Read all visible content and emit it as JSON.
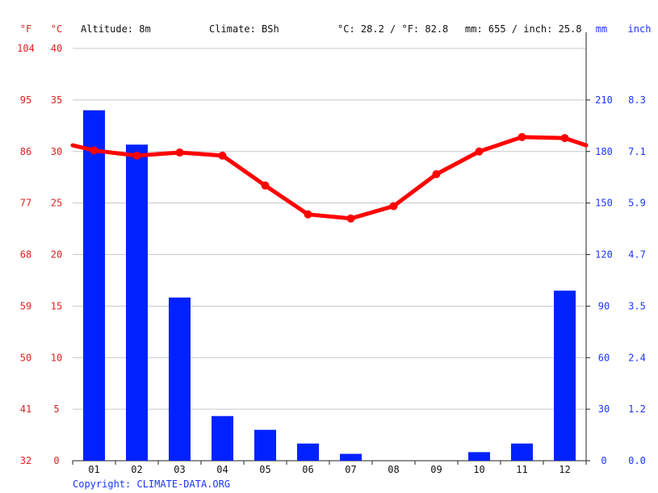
{
  "header": {
    "unit_f": "°F",
    "unit_c": "°C",
    "altitude": "Altitude: 8m",
    "climate": "Climate: BSh",
    "avg_temp": "°C: 28.2 / °F: 82.8",
    "precip_total": "mm: 655 / inch: 25.8",
    "unit_mm": "mm",
    "unit_inch": "inch"
  },
  "footer": {
    "copyright": "Copyright: CLIMATE-DATA.ORG"
  },
  "colors": {
    "temperature": "#ff0000",
    "precipitation": "#0022ff",
    "axis_temp": "#e32020",
    "axis_precip": "#1a35ff",
    "grid": "#c8c8c8"
  },
  "chart_data": {
    "type": "bar",
    "categories": [
      "01",
      "02",
      "03",
      "04",
      "05",
      "06",
      "07",
      "08",
      "09",
      "10",
      "11",
      "12"
    ],
    "series": [
      {
        "type": "bar",
        "axis": "right",
        "values": [
          204,
          184,
          95,
          26,
          18,
          10,
          4,
          0,
          0,
          5,
          10,
          99
        ]
      },
      {
        "type": "line",
        "axis": "left",
        "values": [
          30.1,
          29.6,
          29.9,
          29.6,
          26.7,
          23.9,
          23.5,
          24.7,
          27.8,
          30.0,
          31.4,
          31.3
        ],
        "edge_left": 30.6,
        "edge_right": 30.6
      }
    ],
    "y_left": {
      "range": [
        0,
        40
      ],
      "ticks_c": [
        "0",
        "5",
        "10",
        "15",
        "20",
        "25",
        "30",
        "35",
        "40"
      ],
      "ticks_f": [
        "32",
        "41",
        "50",
        "59",
        "68",
        "77",
        "86",
        "95",
        "104"
      ]
    },
    "y_right": {
      "range": [
        0,
        240
      ],
      "tick_values": [
        0,
        30,
        60,
        90,
        120,
        150,
        180,
        210
      ],
      "ticks_mm": [
        "0",
        "30",
        "60",
        "90",
        "120",
        "150",
        "180",
        "210"
      ],
      "ticks_inch": [
        "0.0",
        "1.2",
        "2.4",
        "3.5",
        "4.7",
        "5.9",
        "7.1",
        "8.3"
      ]
    },
    "grid": true
  }
}
